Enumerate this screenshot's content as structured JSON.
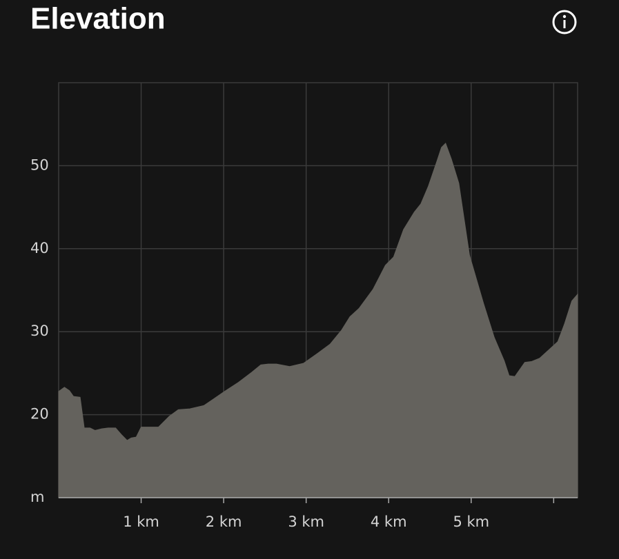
{
  "header": {
    "title": "Elevation"
  },
  "chart_data": {
    "type": "area",
    "color": "#64625d",
    "grid": true,
    "x": [
      0,
      0.07,
      0.13,
      0.18,
      0.26,
      0.31,
      0.38,
      0.44,
      0.52,
      0.6,
      0.69,
      0.76,
      0.83,
      0.88,
      0.94,
      1.0,
      1.09,
      1.21,
      1.34,
      1.45,
      1.59,
      1.76,
      1.88,
      2.01,
      2.18,
      2.34,
      2.45,
      2.54,
      2.64,
      2.8,
      2.97,
      3.14,
      3.29,
      3.43,
      3.53,
      3.64,
      3.81,
      3.96,
      4.06,
      4.18,
      4.31,
      4.39,
      4.48,
      4.58,
      4.64,
      4.69,
      4.76,
      4.85,
      4.98,
      5.15,
      5.28,
      5.4,
      5.46,
      5.53,
      5.65,
      5.73,
      5.83,
      5.94,
      6.05,
      6.13,
      6.22,
      6.29
    ],
    "y": [
      22.8,
      23.3,
      22.9,
      22.2,
      22.1,
      18.4,
      18.4,
      18.1,
      18.3,
      18.4,
      18.4,
      17.6,
      16.9,
      17.2,
      17.3,
      18.5,
      18.5,
      18.5,
      19.8,
      20.6,
      20.7,
      21.1,
      21.9,
      22.8,
      23.9,
      25.1,
      26.0,
      26.1,
      26.1,
      25.8,
      26.2,
      27.4,
      28.5,
      30.2,
      31.8,
      32.8,
      35.1,
      38.0,
      39.0,
      42.3,
      44.4,
      45.4,
      47.5,
      50.4,
      52.2,
      52.7,
      50.8,
      47.9,
      39.2,
      33.4,
      29.3,
      26.5,
      24.7,
      24.6,
      26.3,
      26.4,
      26.8,
      27.8,
      28.8,
      30.9,
      33.7,
      34.5
    ],
    "xlim": [
      0,
      6.29
    ],
    "xticks": [
      {
        "value": 1,
        "label": "1 km"
      },
      {
        "value": 2,
        "label": "2 km"
      },
      {
        "value": 3,
        "label": "3 km"
      },
      {
        "value": 4,
        "label": "4 km"
      },
      {
        "value": 5,
        "label": "5 km"
      },
      {
        "value": 6,
        "label": null
      }
    ],
    "ylim": [
      10,
      60
    ],
    "yticks": [
      {
        "value": 10,
        "label": "m"
      },
      20,
      30,
      40,
      50
    ]
  }
}
